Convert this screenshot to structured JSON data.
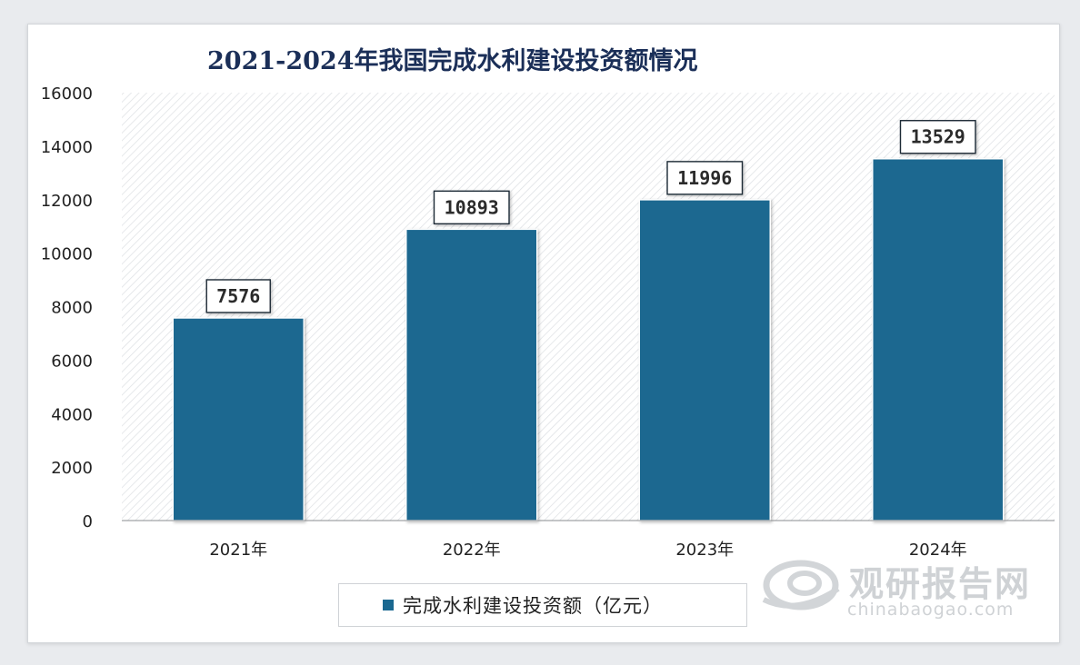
{
  "colors": {
    "bar": "#1a6890",
    "title": "#1b2f58"
  },
  "watermark": {
    "cn": "观研报告网",
    "en": "chinabaogao.com"
  },
  "chart_data": {
    "type": "bar",
    "title": "2021-2024年我国完成水利建设投资额情况",
    "categories": [
      "2021年",
      "2022年",
      "2023年",
      "2024年"
    ],
    "series": [
      {
        "name": "完成水利建设投资额（亿元）",
        "values": [
          7576,
          10893,
          11996,
          13529
        ]
      }
    ],
    "data_labels": [
      "7576",
      "10893",
      "11996",
      "13529"
    ],
    "y_ticks": [
      "0",
      "2000",
      "4000",
      "6000",
      "8000",
      "10000",
      "12000",
      "14000",
      "16000"
    ],
    "ylim": [
      0,
      16000
    ],
    "legend_position": "bottom",
    "grid": false,
    "background_pattern": "diagonal-hatch"
  }
}
